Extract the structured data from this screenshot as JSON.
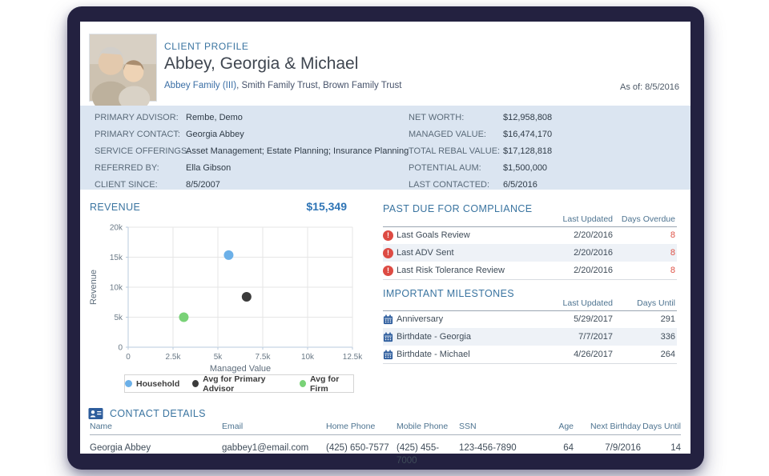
{
  "window": {
    "as_of": "As of: 8/5/2016"
  },
  "header": {
    "eyebrow": "CLIENT PROFILE",
    "client_name": "Abbey, Georgia & Michael",
    "subtitle_link": "Abbey Family (III)",
    "subtitle_rest": ", Smith Family Trust, Brown Family Trust"
  },
  "summary": {
    "left": [
      {
        "label": "PRIMARY ADVISOR:",
        "value": "Rembe, Demo"
      },
      {
        "label": "PRIMARY CONTACT:",
        "value": "Georgia Abbey"
      },
      {
        "label": "SERVICE OFFERINGS:",
        "value": "Asset Management; Estate Planning; Insurance Planning"
      },
      {
        "label": "REFERRED BY:",
        "value": "Ella Gibson"
      },
      {
        "label": "CLIENT SINCE:",
        "value": "8/5/2007"
      }
    ],
    "right": [
      {
        "label": "NET WORTH:",
        "value": "$12,958,808"
      },
      {
        "label": "MANAGED VALUE:",
        "value": "$16,474,170"
      },
      {
        "label": "TOTAL REBAL VALUE:",
        "value": "$17,128,818"
      },
      {
        "label": "POTENTIAL AUM:",
        "value": "$1,500,000"
      },
      {
        "label": "LAST CONTACTED:",
        "value": "6/5/2016"
      }
    ]
  },
  "chart_data": {
    "type": "scatter",
    "title": "REVENUE",
    "value_label": "$15,349",
    "xlabel": "Managed Value",
    "ylabel": "Revenue",
    "xlim": [
      0,
      12500
    ],
    "ylim": [
      0,
      20000
    ],
    "xticks": [
      0,
      2500,
      5000,
      7500,
      10000,
      12500
    ],
    "xtick_labels": [
      "0",
      "2.5k",
      "5k",
      "7.5k",
      "10k",
      "12.5k"
    ],
    "yticks": [
      0,
      5000,
      10000,
      15000,
      20000
    ],
    "ytick_labels": [
      "0",
      "5k",
      "10k",
      "15k",
      "20k"
    ],
    "grid": true,
    "legend_position": "bottom",
    "series": [
      {
        "name": "Household",
        "color": "#6cb0e8",
        "points": [
          {
            "x": 5600,
            "y": 15349
          }
        ]
      },
      {
        "name": "Avg for Primary Advisor",
        "color": "#3b3b3b",
        "points": [
          {
            "x": 6600,
            "y": 8400
          }
        ]
      },
      {
        "name": "Avg for Firm",
        "color": "#79d277",
        "points": [
          {
            "x": 3100,
            "y": 5000
          }
        ]
      }
    ]
  },
  "compliance": {
    "title": "PAST DUE FOR COMPLIANCE",
    "columns": [
      "Last Updated",
      "Days Overdue"
    ],
    "rows": [
      {
        "icon": "alert",
        "label": "Last Goals Review",
        "updated": "2/20/2016",
        "days": "8"
      },
      {
        "icon": "alert",
        "label": "Last ADV Sent",
        "updated": "2/20/2016",
        "days": "8"
      },
      {
        "icon": "alert",
        "label": "Last Risk Tolerance Review",
        "updated": "2/20/2016",
        "days": "8"
      }
    ]
  },
  "milestones": {
    "title": "IMPORTANT MILESTONES",
    "columns": [
      "Last Updated",
      "Days Until"
    ],
    "rows": [
      {
        "icon": "calendar",
        "label": "Anniversary",
        "updated": "5/29/2017",
        "days": "291"
      },
      {
        "icon": "calendar",
        "label": "Birthdate - Georgia",
        "updated": "7/7/2017",
        "days": "336"
      },
      {
        "icon": "calendar",
        "label": "Birthdate - Michael",
        "updated": "4/26/2017",
        "days": "264"
      }
    ]
  },
  "contacts": {
    "title": "CONTACT DETAILS",
    "columns": [
      "Name",
      "Email",
      "Home Phone",
      "Mobile Phone",
      "SSN",
      "Age",
      "Next Birthday",
      "Days Until"
    ],
    "rows": [
      [
        "Georgia Abbey",
        "gabbey1@email.com",
        "(425) 650-7577",
        "(425) 455-7000",
        "123-456-7890",
        "64",
        "7/9/2016",
        "14"
      ]
    ]
  },
  "icons": {
    "alert": "alert-icon (red circle with exclamation)",
    "calendar": "calendar-icon (blue calendar)",
    "contact_card": "contact-card-icon (blue id card)"
  },
  "colors": {
    "frame": "#232140",
    "panel_bg": "#dbe5f1",
    "title_blue": "#3a74a0",
    "accent_blue": "#2e74b5",
    "alert_red": "#dd4b43",
    "overdue_red": "#de5246",
    "calendar_blue": "#2f5e9e"
  }
}
